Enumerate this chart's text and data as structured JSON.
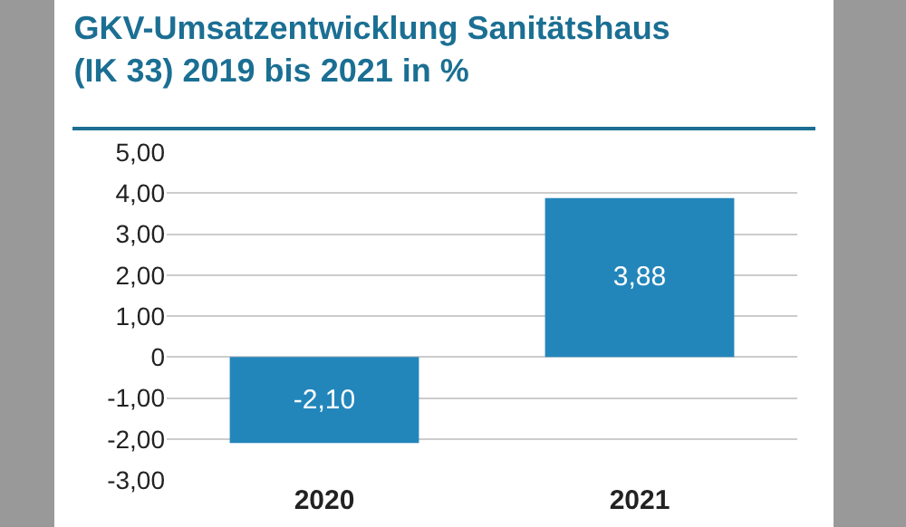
{
  "chart_data": {
    "type": "bar",
    "title": "GKV-Umsatzentwicklung Sanitätshaus\n(IK 33) 2019 bis 2021 in %",
    "categories": [
      "2020",
      "2021"
    ],
    "values": [
      -2.1,
      3.88
    ],
    "color": "#2386bb",
    "value_labels": [
      "-2,10",
      "3,88"
    ],
    "ylim": [
      -3,
      5
    ],
    "yticks": [
      {
        "value": -3,
        "label": "-3,00"
      },
      {
        "value": -2,
        "label": "-2,00"
      },
      {
        "value": -1,
        "label": "-1,00"
      },
      {
        "value": 0,
        "label": "0"
      },
      {
        "value": 1,
        "label": "1,00"
      },
      {
        "value": 2,
        "label": "2,00"
      },
      {
        "value": 3,
        "label": "3,00"
      },
      {
        "value": 4,
        "label": "4,00"
      },
      {
        "value": 5,
        "label": "5,00"
      }
    ],
    "grid": "y",
    "legend": false
  }
}
